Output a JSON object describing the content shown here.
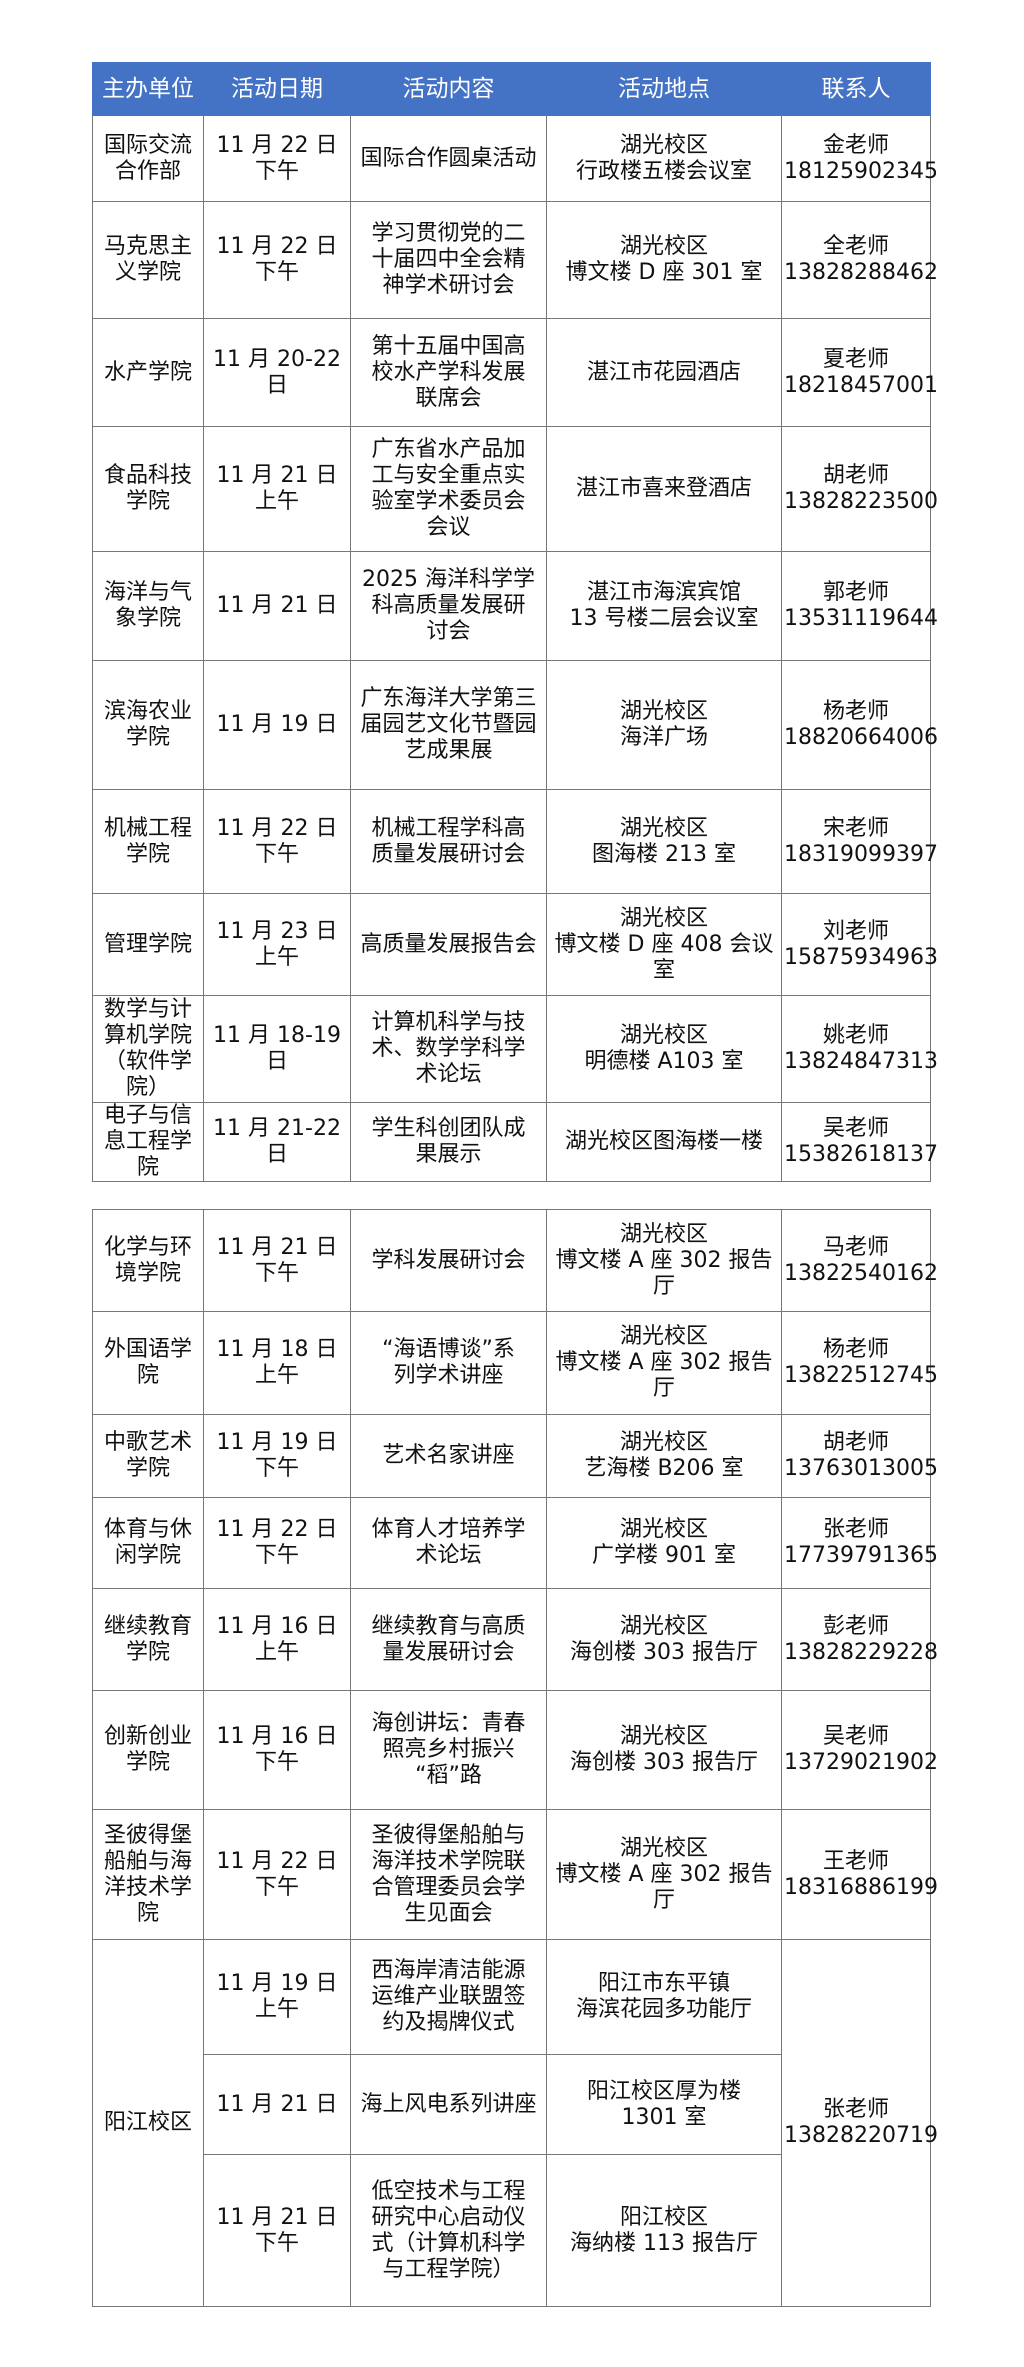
{
  "header": [
    "主办单位",
    "活动日期",
    "活动内容",
    "活动地点",
    "联系人"
  ],
  "table1": [
    {
      "org": "国际交流\n合作部",
      "date": "11 月 22 日\n下午",
      "content": "国际合作圆桌活动",
      "place": "湖光校区\n行政楼五楼会议室",
      "contact": "金老师\n18125902345"
    },
    {
      "org": "马克思主\n义学院",
      "date": "11 月 22 日\n下午",
      "content": "学习贯彻党的二\n十届四中全会精\n神学术研讨会",
      "place": "湖光校区\n博文楼 D 座 301 室",
      "contact": "全老师\n13828288462"
    },
    {
      "org": "水产学院",
      "date": "11 月 20-22\n日",
      "content": "第十五届中国高\n校水产学科发展\n联席会",
      "place": "湛江市花园酒店",
      "contact": "夏老师\n18218457001"
    },
    {
      "org": "食品科技\n学院",
      "date": "11 月 21 日\n上午",
      "content": "广东省水产品加\n工与安全重点实\n验室学术委员会\n会议",
      "place": "湛江市喜来登酒店",
      "contact": "胡老师\n13828223500"
    },
    {
      "org": "海洋与气\n象学院",
      "date": "11 月 21 日",
      "content": "2025 海洋科学学\n科高质量发展研\n讨会",
      "place": "湛江市海滨宾馆\n13 号楼二层会议室",
      "contact": "郭老师\n13531119644"
    },
    {
      "org": "滨海农业\n学院",
      "date": "11 月 19 日",
      "content": "广东海洋大学第三\n届园艺文化节暨园\n艺成果展",
      "place": "湖光校区\n海洋广场",
      "contact": "杨老师\n18820664006"
    },
    {
      "org": "机械工程\n学院",
      "date": "11 月 22 日\n下午",
      "content": "机械工程学科高\n质量发展研讨会",
      "place": "湖光校区\n图海楼 213 室",
      "contact": "宋老师\n18319099397"
    },
    {
      "org": "管理学院",
      "date": "11 月 23 日\n上午",
      "content": "高质量发展报告会",
      "place": "湖光校区\n博文楼 D 座 408 会议室",
      "contact": "刘老师\n15875934963"
    },
    {
      "org": "数学与计\n算机学院\n（软件学\n院）",
      "date": "11 月 18-19\n日",
      "content": "计算机科学与技\n术、数学学科学\n术论坛",
      "place": "湖光校区\n明德楼 A103 室",
      "contact": "姚老师\n13824847313"
    },
    {
      "org": "电子与信\n息工程学\n院",
      "date": "11 月 21-22\n日",
      "content": "学生科创团队成\n果展示",
      "place": "湖光校区图海楼一楼",
      "contact": "吴老师\n15382618137"
    }
  ],
  "table2": [
    {
      "org": "化学与环\n境学院",
      "date": "11 月 21 日\n下午",
      "content": "学科发展研讨会",
      "place": "湖光校区\n博文楼 A 座 302 报告厅",
      "contact": "马老师\n13822540162"
    },
    {
      "org": "外国语学\n院",
      "date": "11 月 18 日\n上午",
      "content": "“海语博谈”系\n列学术讲座",
      "place": "湖光校区\n博文楼 A 座 302 报告厅",
      "contact": "杨老师\n13822512745"
    },
    {
      "org": "中歌艺术\n学院",
      "date": "11 月 19 日\n下午",
      "content": "艺术名家讲座",
      "place": "湖光校区\n艺海楼 B206 室",
      "contact": "胡老师\n13763013005"
    },
    {
      "org": "体育与休\n闲学院",
      "date": "11 月 22 日\n下午",
      "content": "体育人才培养学\n术论坛",
      "place": "湖光校区\n广学楼 901 室",
      "contact": "张老师\n17739791365"
    },
    {
      "org": "继续教育\n学院",
      "date": "11 月 16 日\n上午",
      "content": "继续教育与高质\n量发展研讨会",
      "place": "湖光校区\n海创楼  303 报告厅",
      "contact": "彭老师\n13828229228"
    },
    {
      "org": "创新创业\n学院",
      "date": "11 月 16 日\n下午",
      "content": "海创讲坛：青春\n照亮乡村振兴\n“稻”路",
      "place": "湖光校区\n海创楼 303 报告厅",
      "contact": "吴老师\n13729021902"
    },
    {
      "org": "圣彼得堡\n船舶与海\n洋技术学\n院",
      "date": "11 月 22 日\n下午",
      "content": "圣彼得堡船舶与\n海洋技术学院联\n合管理委员会学\n生见面会",
      "place": "湖光校区\n博文楼 A 座 302 报告厅",
      "contact": "王老师\n18316886199"
    }
  ],
  "yangjiang": {
    "org": "阳江校区",
    "contact": "张老师\n13828220719",
    "events": [
      {
        "date": "11 月 19 日\n上午",
        "content": "西海岸清洁能源\n运维产业联盟签\n约及揭牌仪式",
        "place": "阳江市东平镇\n海滨花园多功能厅"
      },
      {
        "date": "11 月 21 日",
        "content": "海上风电系列讲座",
        "place": "阳江校区厚为楼\n1301 室"
      },
      {
        "date": "11 月 21 日\n下午",
        "content": "低空技术与工程\n研究中心启动仪\n式（计算机科学\n与工程学院）",
        "place": "阳江校区\n海纳楼 113 报告厅"
      }
    ]
  },
  "colors": {
    "header_bg": "#4472C4",
    "header_text": "#FFFFFF",
    "border": "#777777"
  }
}
